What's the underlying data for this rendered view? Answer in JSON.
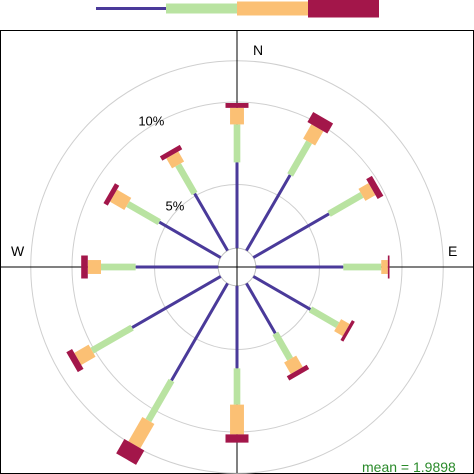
{
  "chart_data": {
    "type": "wind-rose",
    "directions": [
      0,
      30,
      60,
      90,
      120,
      150,
      180,
      210,
      240,
      270,
      300,
      330
    ],
    "compass_labels": {
      "north": "N",
      "east": "E",
      "west": "W"
    },
    "radial_ticks": [
      {
        "value": 5,
        "label": "5%"
      },
      {
        "value": 10,
        "label": "10%"
      }
    ],
    "rmax": 12.5,
    "calm_radius_pct": 0.9,
    "band_colors": [
      "#4a3a9a",
      "#b9e3a1",
      "#fbc074",
      "#a3164a"
    ],
    "band_widths": [
      0.2,
      0.55,
      1.15,
      1.9
    ],
    "segments": [
      [
        5.2,
        2.3,
        1.0,
        0.3
      ],
      [
        5.3,
        2.3,
        1.0,
        0.7
      ],
      [
        5.3,
        2.3,
        0.7,
        0.4
      ],
      [
        5.3,
        2.3,
        0.4,
        0.1
      ],
      [
        4.0,
        1.9,
        0.6,
        0.2
      ],
      [
        3.5,
        1.8,
        0.8,
        0.3
      ],
      [
        5.0,
        2.2,
        1.8,
        0.5
      ],
      [
        6.8,
        2.8,
        1.7,
        1.0
      ],
      [
        6.2,
        2.8,
        1.0,
        0.4
      ],
      [
        5.0,
        2.1,
        0.8,
        0.4
      ],
      [
        4.3,
        2.2,
        1.0,
        0.3
      ],
      [
        4.0,
        2.0,
        0.7,
        0.3
      ]
    ],
    "mean_label": "mean = 1.9898"
  }
}
